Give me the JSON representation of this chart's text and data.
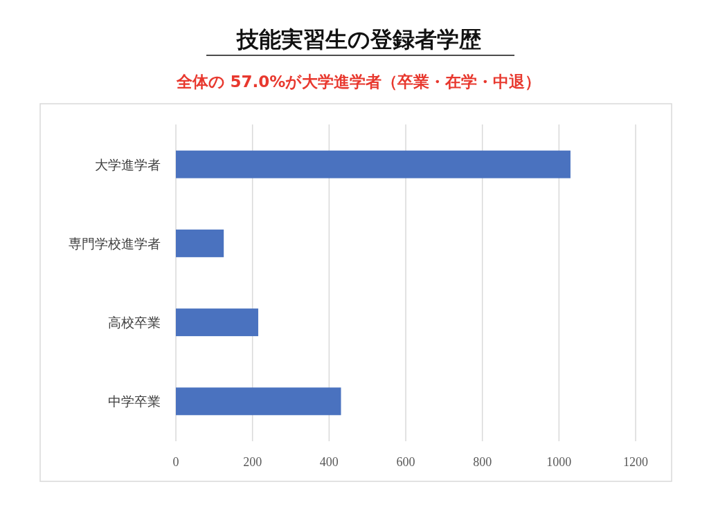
{
  "chart_data": {
    "type": "bar",
    "orientation": "horizontal",
    "title": "技能実習生の登録者学歴",
    "subtitle": "全体の 57.0%が大学進学者（卒業・在学・中退）",
    "categories": [
      "大学進学者",
      "専門学校進学者",
      "高校卒業",
      "中学卒業"
    ],
    "values": [
      1030,
      125,
      215,
      431
    ],
    "color": "#4a72bf",
    "xlim": [
      0,
      1200
    ],
    "xticks": [
      0,
      200,
      400,
      600,
      800,
      1000,
      1200
    ],
    "grid": "x"
  }
}
